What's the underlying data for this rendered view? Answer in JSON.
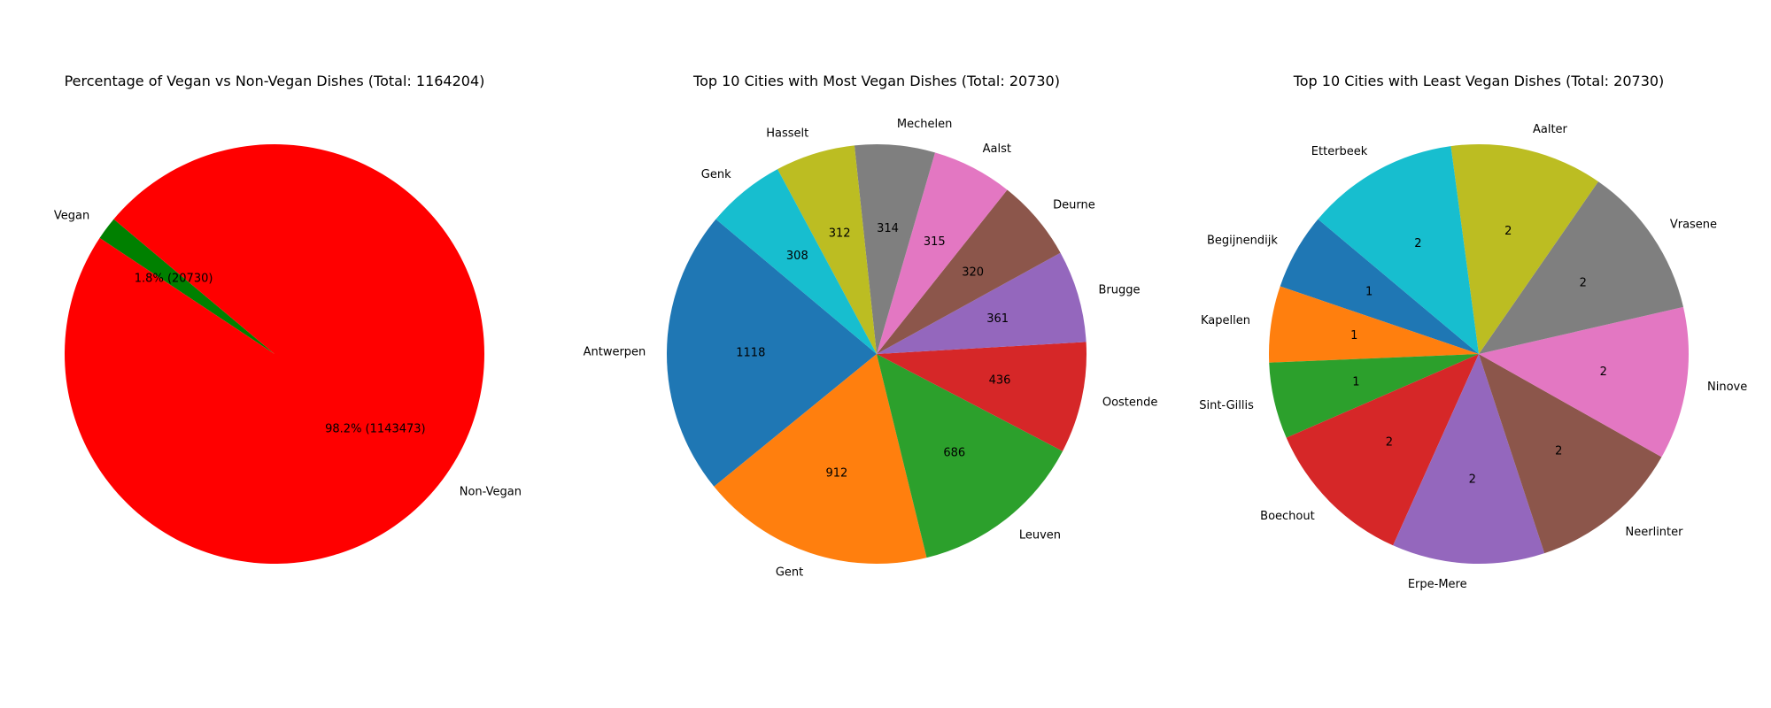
{
  "chart_data": [
    {
      "type": "pie",
      "title": "Percentage of Vegan vs Non-Vegan Dishes (Total: 1164204)",
      "labels": [
        "Vegan",
        "Non-Vegan"
      ],
      "values": [
        20730,
        1143473
      ],
      "autopct_labels": [
        "1.8% (20730)",
        "98.2% (1143473)"
      ],
      "colors": [
        "#008000",
        "#ff0000"
      ],
      "start_angle_deg": 140
    },
    {
      "type": "pie",
      "title": "Top 10 Cities with Most Vegan Dishes (Total: 20730)",
      "labels": [
        "Antwerpen",
        "Gent",
        "Leuven",
        "Oostende",
        "Brugge",
        "Deurne",
        "Aalst",
        "Mechelen",
        "Hasselt",
        "Genk"
      ],
      "values": [
        1118,
        912,
        686,
        436,
        361,
        320,
        315,
        314,
        312,
        308
      ],
      "autopct_labels": [
        "1118",
        "912",
        "686",
        "436",
        "361",
        "320",
        "315",
        "314",
        "312",
        "308"
      ],
      "colors": [
        "#1f77b4",
        "#ff7f0e",
        "#2ca02c",
        "#d62728",
        "#9467bd",
        "#8c564b",
        "#e377c2",
        "#7f7f7f",
        "#bcbd22",
        "#17becf"
      ],
      "start_angle_deg": 140
    },
    {
      "type": "pie",
      "title": "Top 10 Cities with Least Vegan Dishes (Total: 20730)",
      "labels": [
        "Begijnendijk",
        "Kapellen",
        "Sint-Gillis",
        "Boechout",
        "Erpe-Mere",
        "Neerlinter",
        "Ninove",
        "Vrasene",
        "Aalter",
        "Etterbeek"
      ],
      "values": [
        1,
        1,
        1,
        2,
        2,
        2,
        2,
        2,
        2,
        2
      ],
      "autopct_labels": [
        "1",
        "1",
        "1",
        "2",
        "2",
        "2",
        "2",
        "2",
        "2",
        "2"
      ],
      "colors": [
        "#1f77b4",
        "#ff7f0e",
        "#2ca02c",
        "#d62728",
        "#9467bd",
        "#8c564b",
        "#e377c2",
        "#7f7f7f",
        "#bcbd22",
        "#17becf"
      ],
      "start_angle_deg": 140
    }
  ]
}
